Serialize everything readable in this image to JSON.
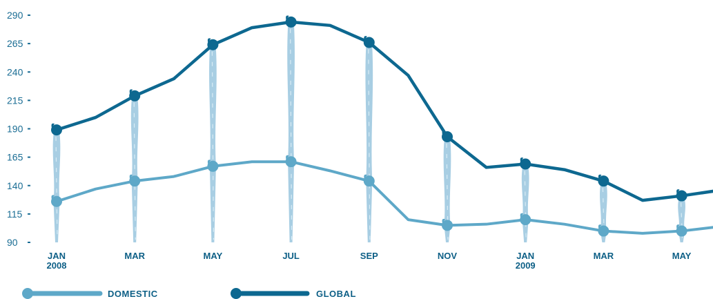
{
  "chart_data": {
    "type": "line",
    "title": "",
    "xlabel": "",
    "ylabel": "",
    "ylim": [
      90,
      290
    ],
    "yticks": [
      90,
      115,
      140,
      165,
      190,
      215,
      240,
      265,
      290
    ],
    "x": [
      "JAN 2008",
      "FEB 2008",
      "MAR 2008",
      "APR 2008",
      "MAY 2008",
      "JUN 2008",
      "JUL 2008",
      "AUG 2008",
      "SEP 2008",
      "OCT 2008",
      "NOV 2008",
      "DEC 2008",
      "JAN 2009",
      "FEB 2009",
      "MAR 2009",
      "APR 2009",
      "MAY 2009",
      "JUN 2009"
    ],
    "x_tick_labels": [
      {
        "index": 0,
        "line1": "JAN",
        "line2": "2008"
      },
      {
        "index": 2,
        "line1": "MAR",
        "line2": ""
      },
      {
        "index": 4,
        "line1": "MAY",
        "line2": ""
      },
      {
        "index": 6,
        "line1": "JUL",
        "line2": ""
      },
      {
        "index": 8,
        "line1": "SEP",
        "line2": ""
      },
      {
        "index": 10,
        "line1": "NOV",
        "line2": ""
      },
      {
        "index": 12,
        "line1": "JAN",
        "line2": "2009"
      },
      {
        "index": 14,
        "line1": "MAR",
        "line2": ""
      },
      {
        "index": 16,
        "line1": "MAY",
        "line2": ""
      }
    ],
    "series": [
      {
        "name": "DOMESTIC",
        "color": "#5ea8c8",
        "values": [
          126,
          137,
          144,
          148,
          157,
          161,
          161,
          153,
          144,
          110,
          105,
          106,
          110,
          106,
          100,
          98,
          100,
          104
        ]
      },
      {
        "name": "GLOBAL",
        "color": "#0d6890",
        "values": [
          189,
          200,
          219,
          234,
          264,
          279,
          284,
          281,
          266,
          237,
          183,
          156,
          159,
          154,
          144,
          127,
          131,
          136
        ]
      }
    ],
    "marked_indices": [
      0,
      2,
      4,
      6,
      8,
      10,
      12,
      14,
      16
    ],
    "drip_color": "#9ec9e0",
    "legend_placement": "bottom-left",
    "grid": false
  }
}
